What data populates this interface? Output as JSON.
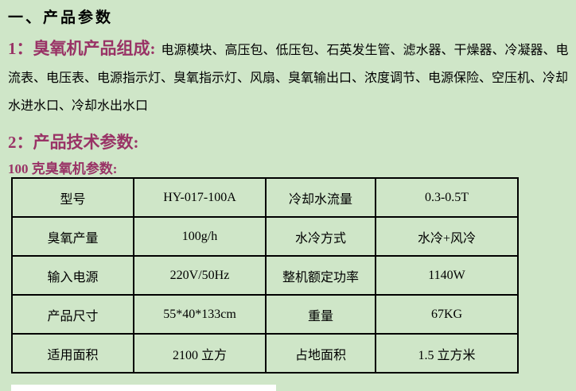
{
  "colors": {
    "page-bg": "#cfe6c8",
    "accent": "#993366",
    "text": "#000000",
    "table-border": "#000000",
    "strip": "#ffffff"
  },
  "document": {
    "title": "一、产品参数",
    "section1": {
      "heading": "1：臭氧机产品组成:",
      "body": "电源模块、高压包、低压包、石英发生管、滤水器、干燥器、冷凝器、电流表、电压表、电源指示灯、臭氧指示灯、风扇、臭氧输出口、浓度调节、电源保险、空压机、冷却水进水口、冷却水出水口"
    },
    "section2": {
      "heading": "2：产品技术参数:"
    },
    "table_caption": "100 克臭氧机参数:",
    "spec_table": {
      "rows": [
        [
          "型号",
          "HY-017-100A",
          "冷却水流量",
          "0.3-0.5T"
        ],
        [
          "臭氧产量",
          "100g/h",
          "水冷方式",
          "水冷+风冷"
        ],
        [
          "输入电源",
          "220V/50Hz",
          "整机额定功率",
          "1140W"
        ],
        [
          "产品尺寸",
          "55*40*133cm",
          "重量",
          "67KG"
        ],
        [
          "适用面积",
          "2100 立方",
          "占地面积",
          "1.5 立方米"
        ]
      ]
    }
  }
}
